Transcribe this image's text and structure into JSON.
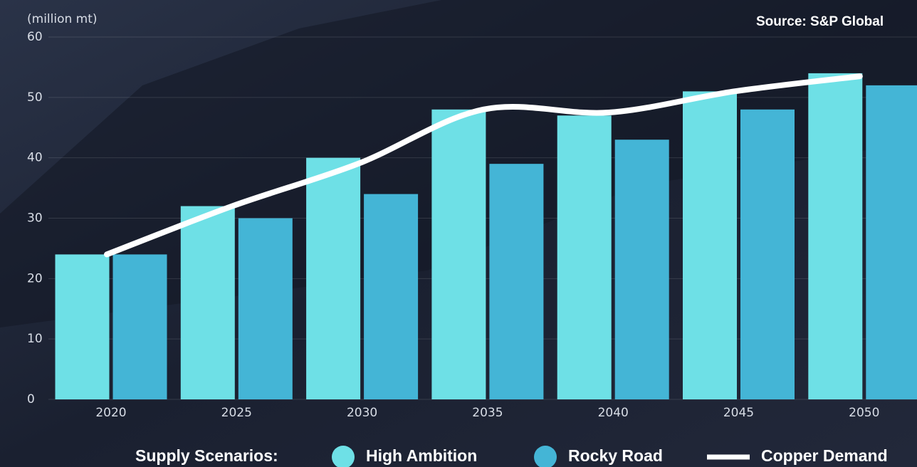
{
  "chart_data": {
    "type": "bar",
    "y_label": "(million mt)",
    "source": "Source: S&P Global",
    "legend_title": "Supply Scenarios:",
    "categories": [
      "2020",
      "2025",
      "2030",
      "2035",
      "2040",
      "2045",
      "2050"
    ],
    "series": [
      {
        "name": "High Ambition",
        "color": "#6ee0e6",
        "values": [
          24,
          32,
          40,
          48,
          47,
          51,
          54
        ]
      },
      {
        "name": "Rocky Road",
        "color": "#44b5d6",
        "values": [
          24,
          30,
          34,
          39,
          43,
          48,
          52
        ]
      },
      {
        "name": "Copper Demand",
        "type": "line",
        "color": "#ffffff",
        "values": [
          24,
          32,
          39,
          48,
          47.5,
          51,
          53.5
        ]
      }
    ],
    "ylim": [
      0,
      60
    ],
    "yticks": [
      0,
      10,
      20,
      30,
      40,
      50,
      60
    ],
    "grid": true
  }
}
